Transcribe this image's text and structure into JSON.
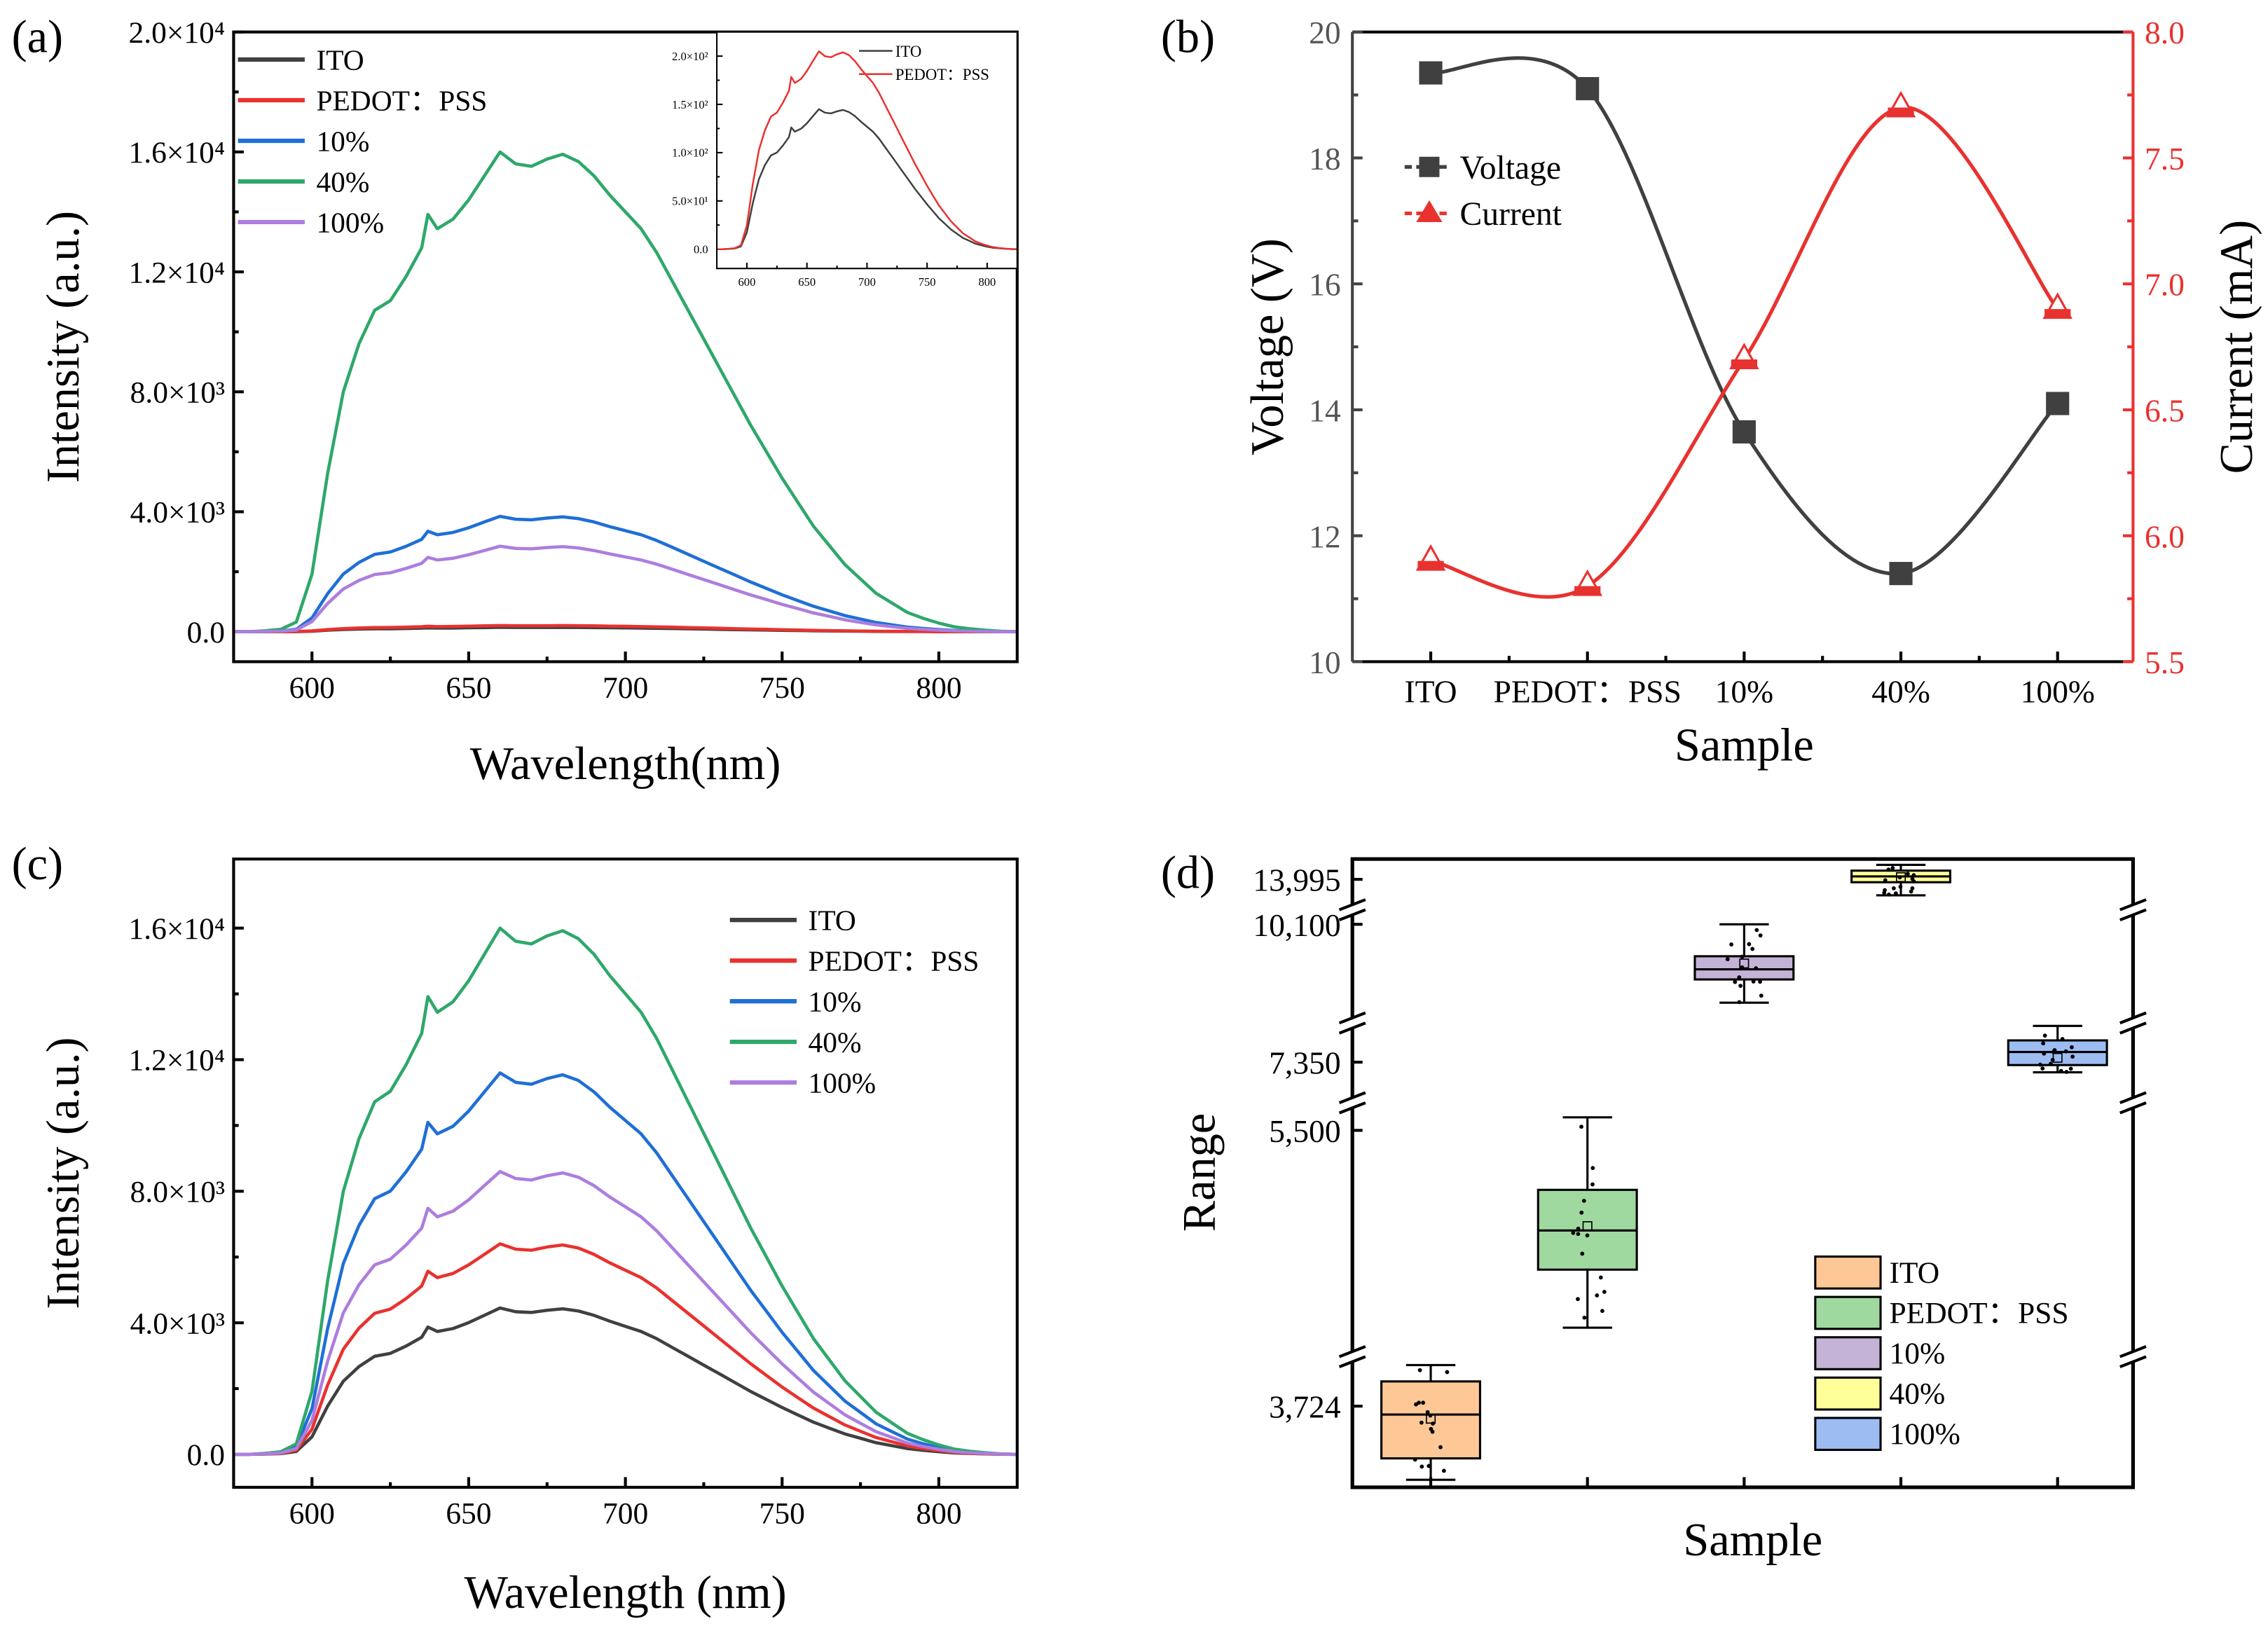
{
  "chart_data": [
    {
      "id": "a",
      "panel_label": "(a)",
      "type": "line",
      "xlabel": "Wavelength(nm)",
      "ylabel": "Intensity (a.u.)",
      "xlim": [
        575,
        825
      ],
      "ylim": [
        -1000,
        20000
      ],
      "xticks": [
        600,
        650,
        700,
        750,
        800
      ],
      "yticks": [
        {
          "v": 0,
          "label": "0.0"
        },
        {
          "v": 4000,
          "label": "4.0×10³"
        },
        {
          "v": 8000,
          "label": "8.0×10³"
        },
        {
          "v": 12000,
          "label": "1.2×10⁴"
        },
        {
          "v": 16000,
          "label": "1.6×10⁴"
        },
        {
          "v": 20000,
          "label": "2.0×10⁴"
        }
      ],
      "legend_position": "top-left",
      "x": [
        575,
        580,
        585,
        590,
        595,
        600,
        605,
        610,
        615,
        620,
        625,
        630,
        635,
        637,
        640,
        645,
        650,
        655,
        660,
        665,
        670,
        675,
        680,
        685,
        690,
        695,
        700,
        705,
        710,
        715,
        720,
        725,
        730,
        735,
        740,
        745,
        750,
        755,
        760,
        765,
        770,
        775,
        780,
        785,
        790,
        795,
        800,
        805,
        810,
        815,
        820,
        825
      ],
      "profile": [
        0,
        0,
        0.002,
        0.005,
        0.02,
        0.12,
        0.33,
        0.5,
        0.6,
        0.67,
        0.69,
        0.74,
        0.8,
        0.87,
        0.84,
        0.86,
        0.9,
        0.95,
        1.0,
        0.975,
        0.97,
        0.985,
        0.995,
        0.98,
        0.95,
        0.91,
        0.875,
        0.84,
        0.79,
        0.73,
        0.67,
        0.61,
        0.55,
        0.49,
        0.43,
        0.375,
        0.32,
        0.27,
        0.22,
        0.18,
        0.14,
        0.11,
        0.08,
        0.06,
        0.04,
        0.028,
        0.018,
        0.01,
        0.006,
        0.003,
        0.001,
        0
      ],
      "series": [
        {
          "name": "ITO",
          "peak": 145,
          "color": "#404040"
        },
        {
          "name": "PEDOT：PSS",
          "peak": 205,
          "color": "#e8322f"
        },
        {
          "name": "10%",
          "peak": 3850,
          "color": "#1f6fd6"
        },
        {
          "name": "40%",
          "peak": 16000,
          "color": "#2ea86a"
        },
        {
          "name": "100%",
          "peak": 2850,
          "color": "#ad7ddf"
        }
      ],
      "inset": {
        "xlim": [
          575,
          825
        ],
        "ylim": [
          -20,
          225
        ],
        "xticks": [
          600,
          650,
          700,
          750,
          800
        ],
        "yticks": [
          {
            "v": 0,
            "label": "0.0"
          },
          {
            "v": 50,
            "label": "5.0×10¹"
          },
          {
            "v": 100,
            "label": "1.0×10²"
          },
          {
            "v": 150,
            "label": "1.5×10²"
          },
          {
            "v": 200,
            "label": "2.0×10²"
          }
        ],
        "series_names": [
          "ITO",
          "PEDOT：PSS"
        ]
      }
    },
    {
      "id": "b",
      "panel_label": "(b)",
      "type": "line",
      "xlabel": "Sample",
      "ylabel": "Voltage (V)",
      "y2label": "Current (mA)",
      "categories": [
        "ITO",
        "PEDOT：PSS",
        "10%",
        "40%",
        "100%"
      ],
      "ylim": [
        10,
        20
      ],
      "y2lim": [
        5.5,
        8.0
      ],
      "yticks": [
        "10",
        "12",
        "14",
        "16",
        "18",
        "20"
      ],
      "y2ticks": [
        "5.5",
        "6.0",
        "6.5",
        "7.0",
        "7.5",
        "8.0"
      ],
      "legend_position": "upper-left",
      "series": [
        {
          "name": "Voltage",
          "axis": "left",
          "marker": "square",
          "color": "#404040",
          "values": [
            19.35,
            19.1,
            13.65,
            11.4,
            14.1
          ]
        },
        {
          "name": "Current",
          "axis": "right",
          "marker": "triangle",
          "color": "#e8322f",
          "values": [
            5.9,
            5.8,
            6.7,
            7.7,
            6.9
          ]
        }
      ]
    },
    {
      "id": "c",
      "panel_label": "(c)",
      "type": "line",
      "xlabel": "Wavelength (nm)",
      "ylabel": "Intensity (a.u.)",
      "xlim": [
        575,
        825
      ],
      "ylim": [
        -1000,
        18100
      ],
      "xticks": [
        600,
        650,
        700,
        750,
        800
      ],
      "yticks": [
        {
          "v": 0,
          "label": "0.0"
        },
        {
          "v": 4000,
          "label": "4.0×10³"
        },
        {
          "v": 8000,
          "label": "8.0×10³"
        },
        {
          "v": 12000,
          "label": "1.2×10⁴"
        },
        {
          "v": 16000,
          "label": "1.6×10⁴"
        }
      ],
      "legend_position": "top-right",
      "series": [
        {
          "name": "ITO",
          "peak": 4450,
          "color": "#404040"
        },
        {
          "name": "PEDOT：PSS",
          "peak": 6400,
          "color": "#e8322f"
        },
        {
          "name": "10%",
          "peak": 11600,
          "color": "#1f6fd6"
        },
        {
          "name": "40%",
          "peak": 16000,
          "color": "#2ea86a"
        },
        {
          "name": "100%",
          "peak": 8600,
          "color": "#ad7ddf"
        }
      ]
    },
    {
      "id": "d",
      "panel_label": "(d)",
      "type": "box",
      "xlabel": "Sample",
      "ylabel": "Range",
      "yticks": [
        "13,995",
        "10,100",
        "7,350",
        "5,500",
        "3,724"
      ],
      "y_breaks": true,
      "legend_position": "bottom-right",
      "boxes": [
        {
          "name": "ITO",
          "color": "#fdc896",
          "whisker_low": 3566,
          "q1": 3612,
          "median": 3706,
          "q3": 3777,
          "whisker_high": 3812,
          "mean": 3697
        },
        {
          "name": "PEDOT：PSS",
          "color": "#a0d9a0",
          "whisker_low": 4140,
          "q1": 4540,
          "median": 4810,
          "q3": 5090,
          "whisker_high": 5590,
          "mean": 4840
        },
        {
          "name": "10%",
          "color": "#c4b3d6",
          "whisker_low": 9560,
          "q1": 9720,
          "median": 9790,
          "q3": 9880,
          "whisker_high": 10100,
          "mean": 9830
        },
        {
          "name": "40%",
          "color": "#ffff99",
          "whisker_low": 13885,
          "q1": 13975,
          "median": 14015,
          "q3": 14055,
          "whisker_high": 14095,
          "mean": 14010
        },
        {
          "name": "100%",
          "color": "#9dbdf2",
          "whisker_low": 7280,
          "q1": 7330,
          "median": 7420,
          "q3": 7500,
          "whisker_high": 7600,
          "mean": 7380
        }
      ]
    }
  ]
}
